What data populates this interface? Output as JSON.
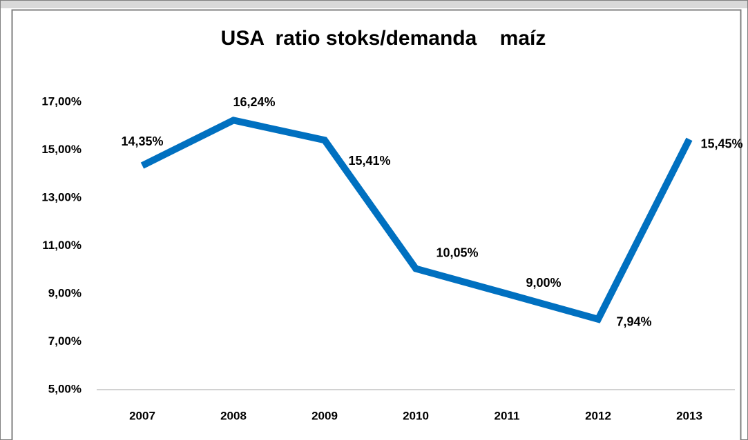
{
  "chart_data": {
    "type": "line",
    "title": "USA  ratio stoks/demanda    maíz",
    "categories": [
      "2007",
      "2008",
      "2009",
      "2010",
      "2011",
      "2012",
      "2013"
    ],
    "values": [
      14.35,
      16.24,
      15.41,
      10.05,
      9.0,
      7.94,
      15.45
    ],
    "value_labels": [
      "14,35%",
      "16,24%",
      "15,41%",
      "10,05%",
      "9,00%",
      "7,94%",
      "15,45%"
    ],
    "color": "#0070c0",
    "ylim": [
      5,
      17
    ],
    "yticks": [
      {
        "value": 5,
        "label": "5,00%"
      },
      {
        "value": 7,
        "label": "7,00%"
      },
      {
        "value": 9,
        "label": "9,00%"
      },
      {
        "value": 11,
        "label": "11,00%"
      },
      {
        "value": 13,
        "label": "13,00%"
      },
      {
        "value": 15,
        "label": "15,00%"
      },
      {
        "value": 17,
        "label": "17,00%"
      }
    ],
    "grid": false
  }
}
